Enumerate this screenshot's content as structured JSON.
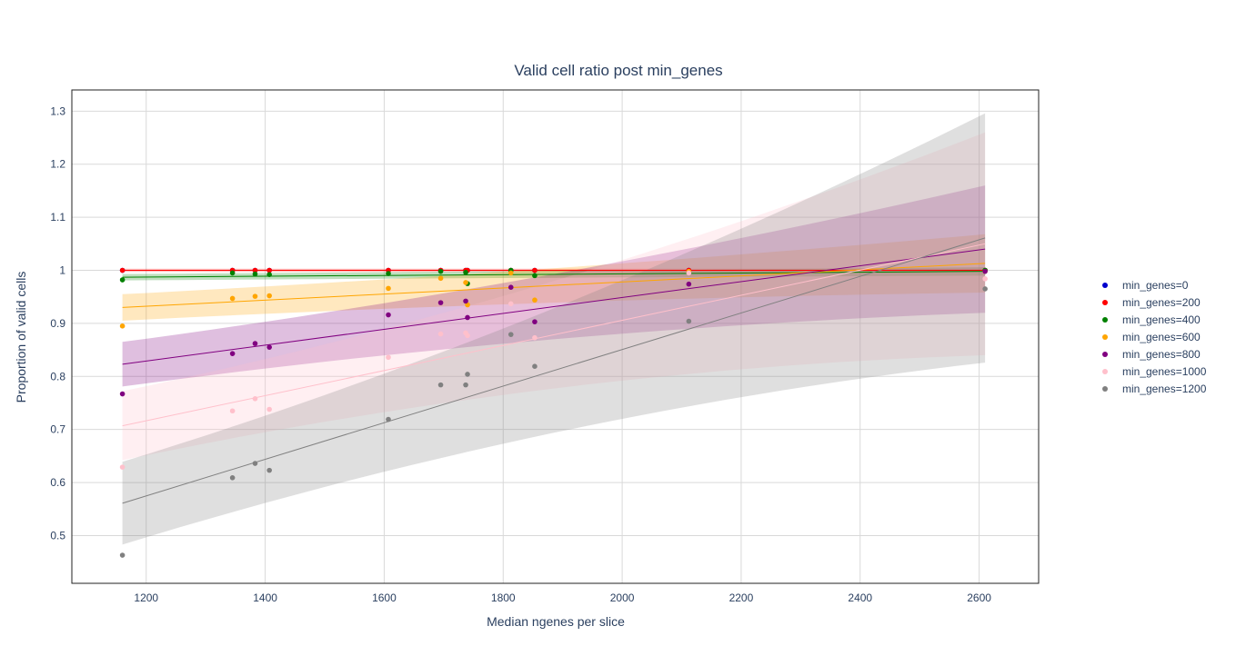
{
  "chart_data": {
    "type": "scatter",
    "title": "Valid cell ratio post min_genes",
    "xlabel": "Median ngenes per slice",
    "ylabel": "Proportion of valid cells",
    "xlim": [
      1075,
      2700
    ],
    "ylim": [
      0.41,
      1.34
    ],
    "xticks": [
      1200,
      1400,
      1600,
      1800,
      2000,
      2200,
      2400,
      2600
    ],
    "yticks": [
      0.5,
      0.6,
      0.7,
      0.8,
      0.9,
      1,
      1.1,
      1.2,
      1.3
    ],
    "grid": true,
    "legend_position": "right",
    "x": [
      1160,
      1345,
      1383,
      1407,
      1607,
      1695,
      1737,
      1740,
      1813,
      1853,
      2112,
      2610
    ],
    "series": [
      {
        "name": "min_genes=0",
        "color": "#0000cd",
        "values": [
          1,
          1,
          1,
          1,
          1,
          1,
          1,
          1,
          1,
          1,
          1,
          1
        ],
        "trend": [
          1,
          1
        ],
        "band": null
      },
      {
        "name": "min_genes=200",
        "color": "#ff0000",
        "values": [
          1,
          1,
          1,
          1,
          1,
          1,
          1,
          1,
          1,
          1,
          1,
          1
        ],
        "trend": [
          1,
          1
        ],
        "band": [
          0.003,
          0.003
        ]
      },
      {
        "name": "min_genes=400",
        "color": "#008000",
        "values": [
          0.982,
          0.995,
          0.993,
          0.992,
          0.994,
          0.998,
          0.996,
          0.975,
          1,
          0.99,
          0.996,
          1
        ],
        "trend": [
          0.987,
          0.998
        ],
        "band": [
          0.006,
          0.008
        ]
      },
      {
        "name": "min_genes=600",
        "color": "#ffa500",
        "values": [
          0.895,
          0.947,
          0.951,
          0.952,
          0.966,
          0.985,
          0.977,
          0.935,
          0.995,
          0.944,
          0.998,
          0.998
        ],
        "trend": [
          0.93,
          1.013
        ],
        "band": [
          0.025,
          0.055
        ]
      },
      {
        "name": "min_genes=800",
        "color": "#800080",
        "values": [
          0.767,
          0.843,
          0.862,
          0.855,
          0.916,
          0.939,
          0.942,
          0.911,
          0.968,
          0.903,
          0.974,
          0.998
        ],
        "trend": [
          0.823,
          1.04
        ],
        "band": [
          0.042,
          0.12
        ]
      },
      {
        "name": "min_genes=1000",
        "color": "#ffc0cb",
        "values": [
          0.629,
          0.735,
          0.758,
          0.738,
          0.836,
          0.88,
          0.882,
          0.877,
          0.937,
          0.873,
          0.995,
          0.984
        ],
        "trend": [
          0.707,
          1.05
        ],
        "band": [
          0.065,
          0.21
        ]
      },
      {
        "name": "min_genes=1200",
        "color": "#808080",
        "values": [
          0.463,
          0.609,
          0.636,
          0.623,
          0.719,
          0.784,
          0.784,
          0.804,
          0.879,
          0.819,
          0.904,
          0.965
        ],
        "trend": [
          0.561,
          1.061
        ],
        "band": [
          0.078,
          0.235
        ]
      }
    ]
  }
}
